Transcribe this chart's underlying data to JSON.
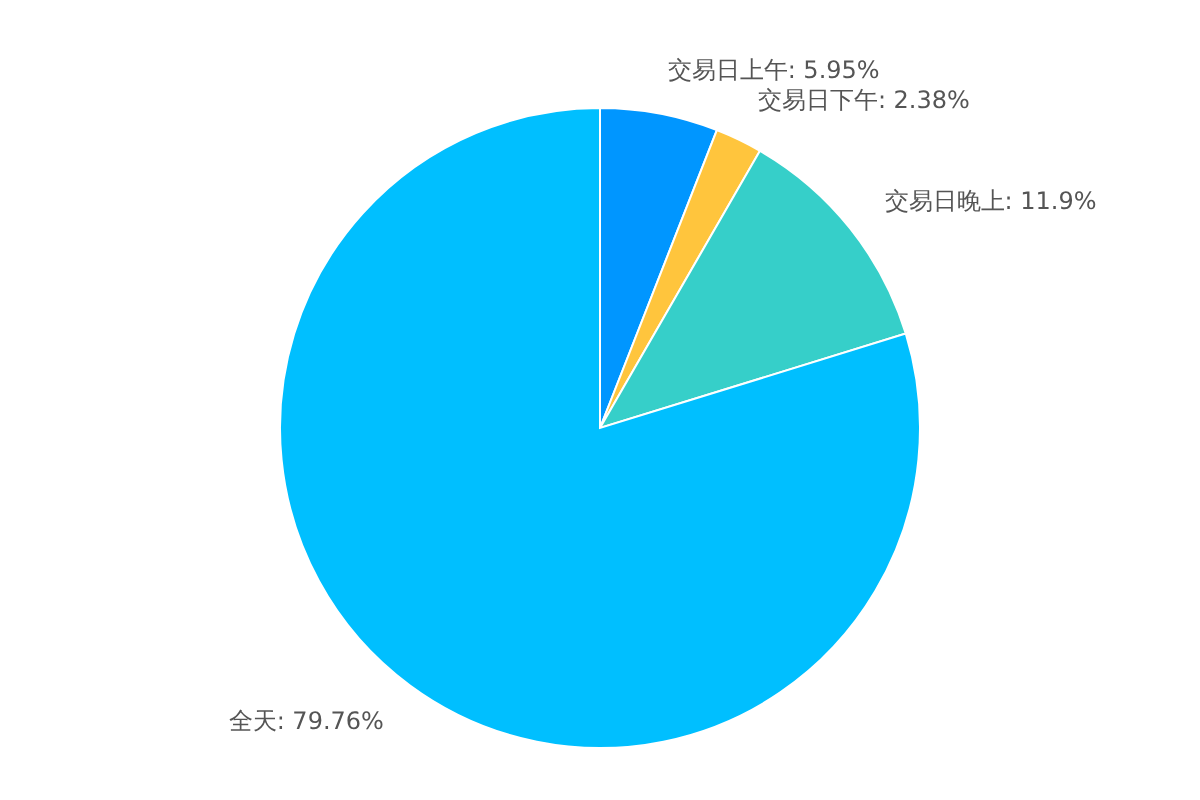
{
  "chart_data": {
    "type": "pie",
    "categories": [
      "交易日上午",
      "交易日下午",
      "交易日晚上",
      "全天"
    ],
    "values": [
      5.95,
      2.38,
      11.9,
      79.76
    ],
    "value_labels": [
      "5.95%",
      "2.38%",
      "11.9%",
      "79.76%"
    ],
    "colors": [
      "#0096ff",
      "#ffc53d",
      "#36cfc9",
      "#00bfff"
    ],
    "legend": false
  }
}
